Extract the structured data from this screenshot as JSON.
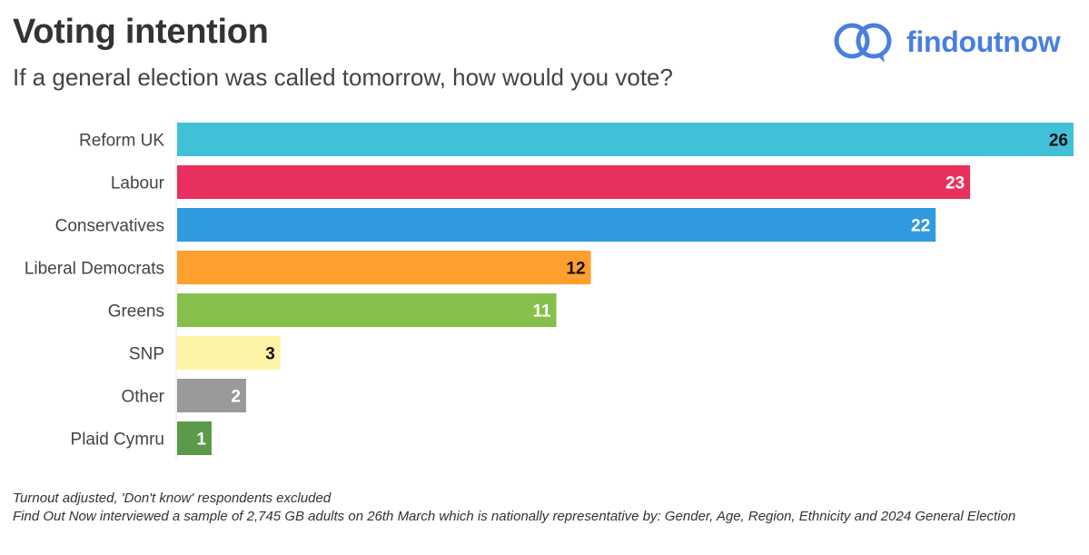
{
  "header": {
    "title": "Voting intention",
    "subtitle": "If a general election was called tomorrow, how would you vote?"
  },
  "logo": {
    "text": "findoutnow",
    "icon": "two-speech-bubbles-icon",
    "color": "#4a7fe0"
  },
  "chart_data": {
    "type": "bar",
    "orientation": "horizontal",
    "title": "Voting intention",
    "subtitle": "If a general election was called tomorrow, how would you vote?",
    "xlabel": "",
    "ylabel": "",
    "xlim": [
      0,
      26
    ],
    "grid": false,
    "categories": [
      "Reform UK",
      "Labour",
      "Conservatives",
      "Liberal Democrats",
      "Greens",
      "SNP",
      "Other",
      "Plaid Cymru"
    ],
    "values": [
      26,
      23,
      22,
      12,
      11,
      3,
      2,
      1
    ],
    "colors": [
      "#41c1d8",
      "#e8305f",
      "#2f9ae0",
      "#ff9f2e",
      "#86c04a",
      "#fdf4a6",
      "#9a9a9a",
      "#5a9a48"
    ],
    "label_colors": [
      "#111111",
      "#ffffff",
      "#ffffff",
      "#111111",
      "#ffffff",
      "#111111",
      "#ffffff",
      "#ffffff"
    ]
  },
  "footnote": {
    "line1": "Turnout adjusted, 'Don't know' respondents excluded",
    "line2": "Find Out Now interviewed a sample of 2,745 GB adults on 26th March which is nationally representative by: Gender, Age, Region, Ethnicity and 2024 General Election"
  }
}
